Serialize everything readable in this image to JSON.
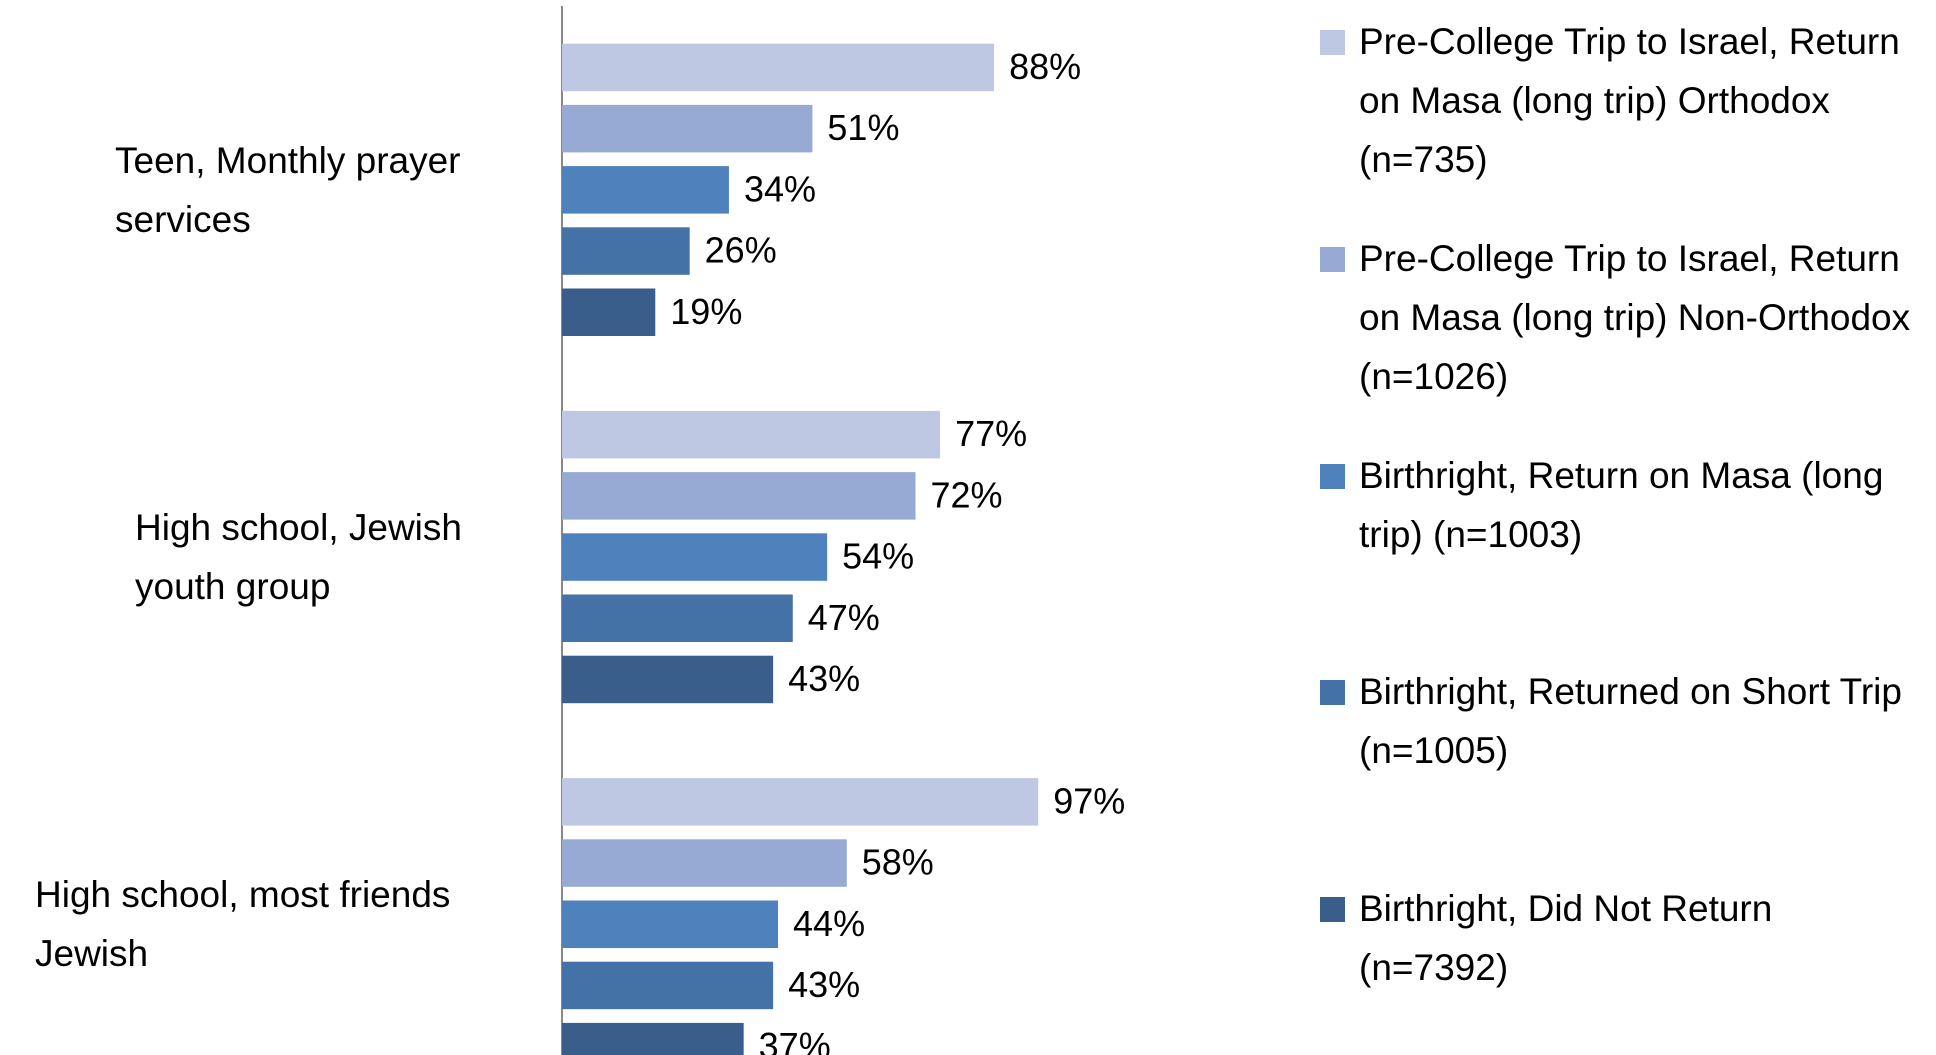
{
  "chart_data": {
    "type": "bar",
    "orientation": "horizontal",
    "categories": [
      "Teen, Monthly prayer services",
      "High school, Jewish youth group",
      "High school, most friends Jewish"
    ],
    "series": [
      {
        "name": "Pre-College Trip to Israel, Return on Masa (long trip) Orthodox (n=735)",
        "color": "#bec8e2",
        "values": [
          88,
          77,
          97
        ],
        "value_labels": [
          "88%",
          "77%",
          "97%"
        ]
      },
      {
        "name": "Pre-College Trip to Israel, Return on Masa (long trip) Non-Orthodox (n=1026)",
        "color": "#97aad4",
        "values": [
          51,
          72,
          58
        ],
        "value_labels": [
          "51%",
          "72%",
          "58%"
        ]
      },
      {
        "name": "Birthright, Return on Masa (long trip) (n=1003)",
        "color": "#4f81bd",
        "values": [
          34,
          54,
          44
        ],
        "value_labels": [
          "34%",
          "54%",
          "44%"
        ]
      },
      {
        "name": "Birthright, Returned on Short Trip (n=1005)",
        "color": "#4471a6",
        "values": [
          26,
          47,
          43
        ],
        "value_labels": [
          "26%",
          "47%",
          "43%"
        ]
      },
      {
        "name": "Birthright, Did Not Return (n=7392)",
        "color": "#3a5e8c",
        "values": [
          19,
          43,
          37
        ],
        "value_labels": [
          "19%",
          "43%",
          "37%"
        ]
      }
    ],
    "xlim": [
      0,
      100
    ],
    "legend": "right"
  }
}
